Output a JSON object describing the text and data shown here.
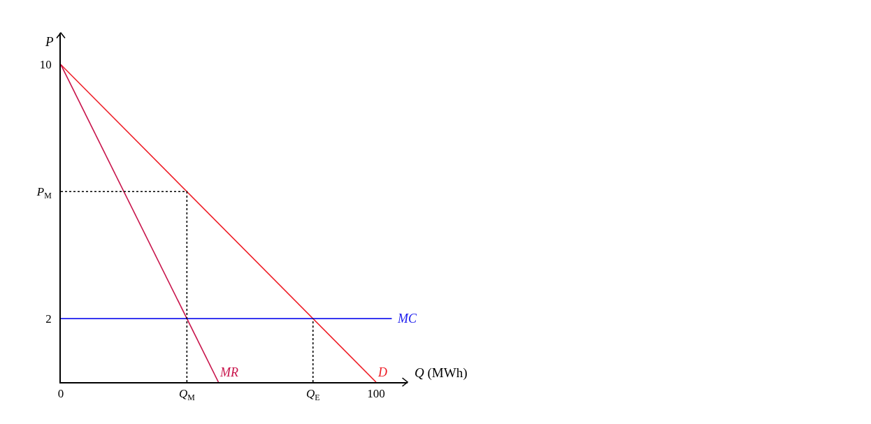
{
  "chart_data": {
    "type": "line",
    "xlabel": "Q (MWh)",
    "ylabel": "P",
    "xlim": [
      0,
      110
    ],
    "ylim": [
      0,
      11
    ],
    "xticks": [
      0,
      {
        "value": 40,
        "label": "Q$_{M}$"
      },
      {
        "value": 80,
        "label": "Q$_{E}$"
      },
      100
    ],
    "yticks": [
      2,
      {
        "value": 6,
        "label": "P$_{M}$"
      },
      10
    ],
    "legend": false,
    "marker": "none",
    "series": [
      {
        "name": "D",
        "color": "#ee1c25",
        "x": [
          0,
          100
        ],
        "values": [
          10,
          0
        ]
      },
      {
        "name": "MR",
        "color": "#c8144b",
        "x": [
          0,
          50
        ],
        "values": [
          10,
          0
        ]
      },
      {
        "name": "MC",
        "color": "#1a1aee",
        "x": [
          0,
          105
        ],
        "values": [
          2,
          2
        ]
      },
      {
        "color": "#000000",
        "line_style": "dotted",
        "x": [
          0,
          40,
          40
        ],
        "values": [
          6,
          6,
          0
        ]
      },
      {
        "color": "#000000",
        "line_style": "dotted",
        "x": [
          80,
          80
        ],
        "values": [
          0,
          2
        ]
      }
    ]
  }
}
